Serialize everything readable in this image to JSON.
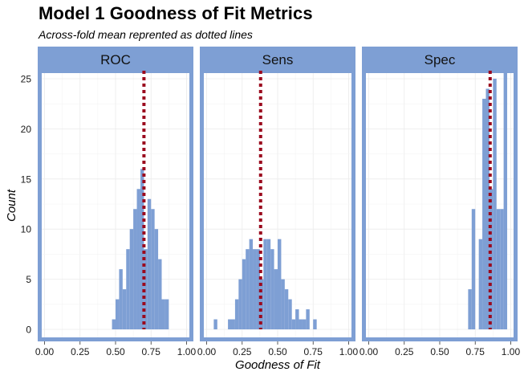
{
  "chart_data": {
    "type": "histogram",
    "title": "Model 1 Goodness of Fit Metrics",
    "subtitle": "Across-fold mean reprented as dotted lines",
    "xlabel": "Goodness of Fit",
    "ylabel": "Count",
    "xlim": [
      -0.02,
      1.02
    ],
    "ylim": [
      -0.8,
      25.8
    ],
    "x_ticks": [
      "0.00",
      "0.25",
      "0.50",
      "0.75",
      "1.00"
    ],
    "x_tick_values": [
      0,
      0.25,
      0.5,
      0.75,
      1.0
    ],
    "y_ticks": [
      "0",
      "5",
      "10",
      "15",
      "20",
      "25"
    ],
    "y_tick_values": [
      0,
      5,
      10,
      15,
      20,
      25
    ],
    "bin_width": 0.025,
    "bar_color": "#7e9fd4",
    "mean_line_color": "#9b0a1e",
    "strip_color": "#7e9fd4",
    "grid": true,
    "panels": [
      {
        "name": "ROC",
        "mean": 0.7,
        "bins": [
          {
            "x": 0.4875,
            "count": 1
          },
          {
            "x": 0.5125,
            "count": 3
          },
          {
            "x": 0.5375,
            "count": 6
          },
          {
            "x": 0.5625,
            "count": 4
          },
          {
            "x": 0.5875,
            "count": 8
          },
          {
            "x": 0.6125,
            "count": 10
          },
          {
            "x": 0.6375,
            "count": 12
          },
          {
            "x": 0.6625,
            "count": 14
          },
          {
            "x": 0.6875,
            "count": 16
          },
          {
            "x": 0.7125,
            "count": 8
          },
          {
            "x": 0.7375,
            "count": 13
          },
          {
            "x": 0.7625,
            "count": 12
          },
          {
            "x": 0.7875,
            "count": 10
          },
          {
            "x": 0.8125,
            "count": 7
          },
          {
            "x": 0.8375,
            "count": 3
          },
          {
            "x": 0.8625,
            "count": 3
          }
        ]
      },
      {
        "name": "Sens",
        "mean": 0.38,
        "bins": [
          {
            "x": 0.0625,
            "count": 1
          },
          {
            "x": 0.1625,
            "count": 1
          },
          {
            "x": 0.1875,
            "count": 1
          },
          {
            "x": 0.2125,
            "count": 3
          },
          {
            "x": 0.2375,
            "count": 5
          },
          {
            "x": 0.2625,
            "count": 7
          },
          {
            "x": 0.2875,
            "count": 8
          },
          {
            "x": 0.3125,
            "count": 9
          },
          {
            "x": 0.3375,
            "count": 8
          },
          {
            "x": 0.3625,
            "count": 8
          },
          {
            "x": 0.3875,
            "count": 5
          },
          {
            "x": 0.4125,
            "count": 9
          },
          {
            "x": 0.4375,
            "count": 9
          },
          {
            "x": 0.4625,
            "count": 8
          },
          {
            "x": 0.4875,
            "count": 6
          },
          {
            "x": 0.5125,
            "count": 9
          },
          {
            "x": 0.5375,
            "count": 5
          },
          {
            "x": 0.5625,
            "count": 4
          },
          {
            "x": 0.5875,
            "count": 3
          },
          {
            "x": 0.6125,
            "count": 1
          },
          {
            "x": 0.6375,
            "count": 2
          },
          {
            "x": 0.6625,
            "count": 1
          },
          {
            "x": 0.6875,
            "count": 1
          },
          {
            "x": 0.7125,
            "count": 2
          },
          {
            "x": 0.7625,
            "count": 1
          }
        ]
      },
      {
        "name": "Spec",
        "mean": 0.855,
        "bins": [
          {
            "x": 0.7125,
            "count": 4
          },
          {
            "x": 0.7375,
            "count": 12
          },
          {
            "x": 0.7875,
            "count": 9
          },
          {
            "x": 0.8125,
            "count": 23
          },
          {
            "x": 0.8375,
            "count": 24
          },
          {
            "x": 0.8625,
            "count": 14
          },
          {
            "x": 0.8875,
            "count": 25
          },
          {
            "x": 0.9125,
            "count": 12
          },
          {
            "x": 0.9375,
            "count": 12
          },
          {
            "x": 0.9625,
            "count": 26
          }
        ]
      }
    ]
  }
}
